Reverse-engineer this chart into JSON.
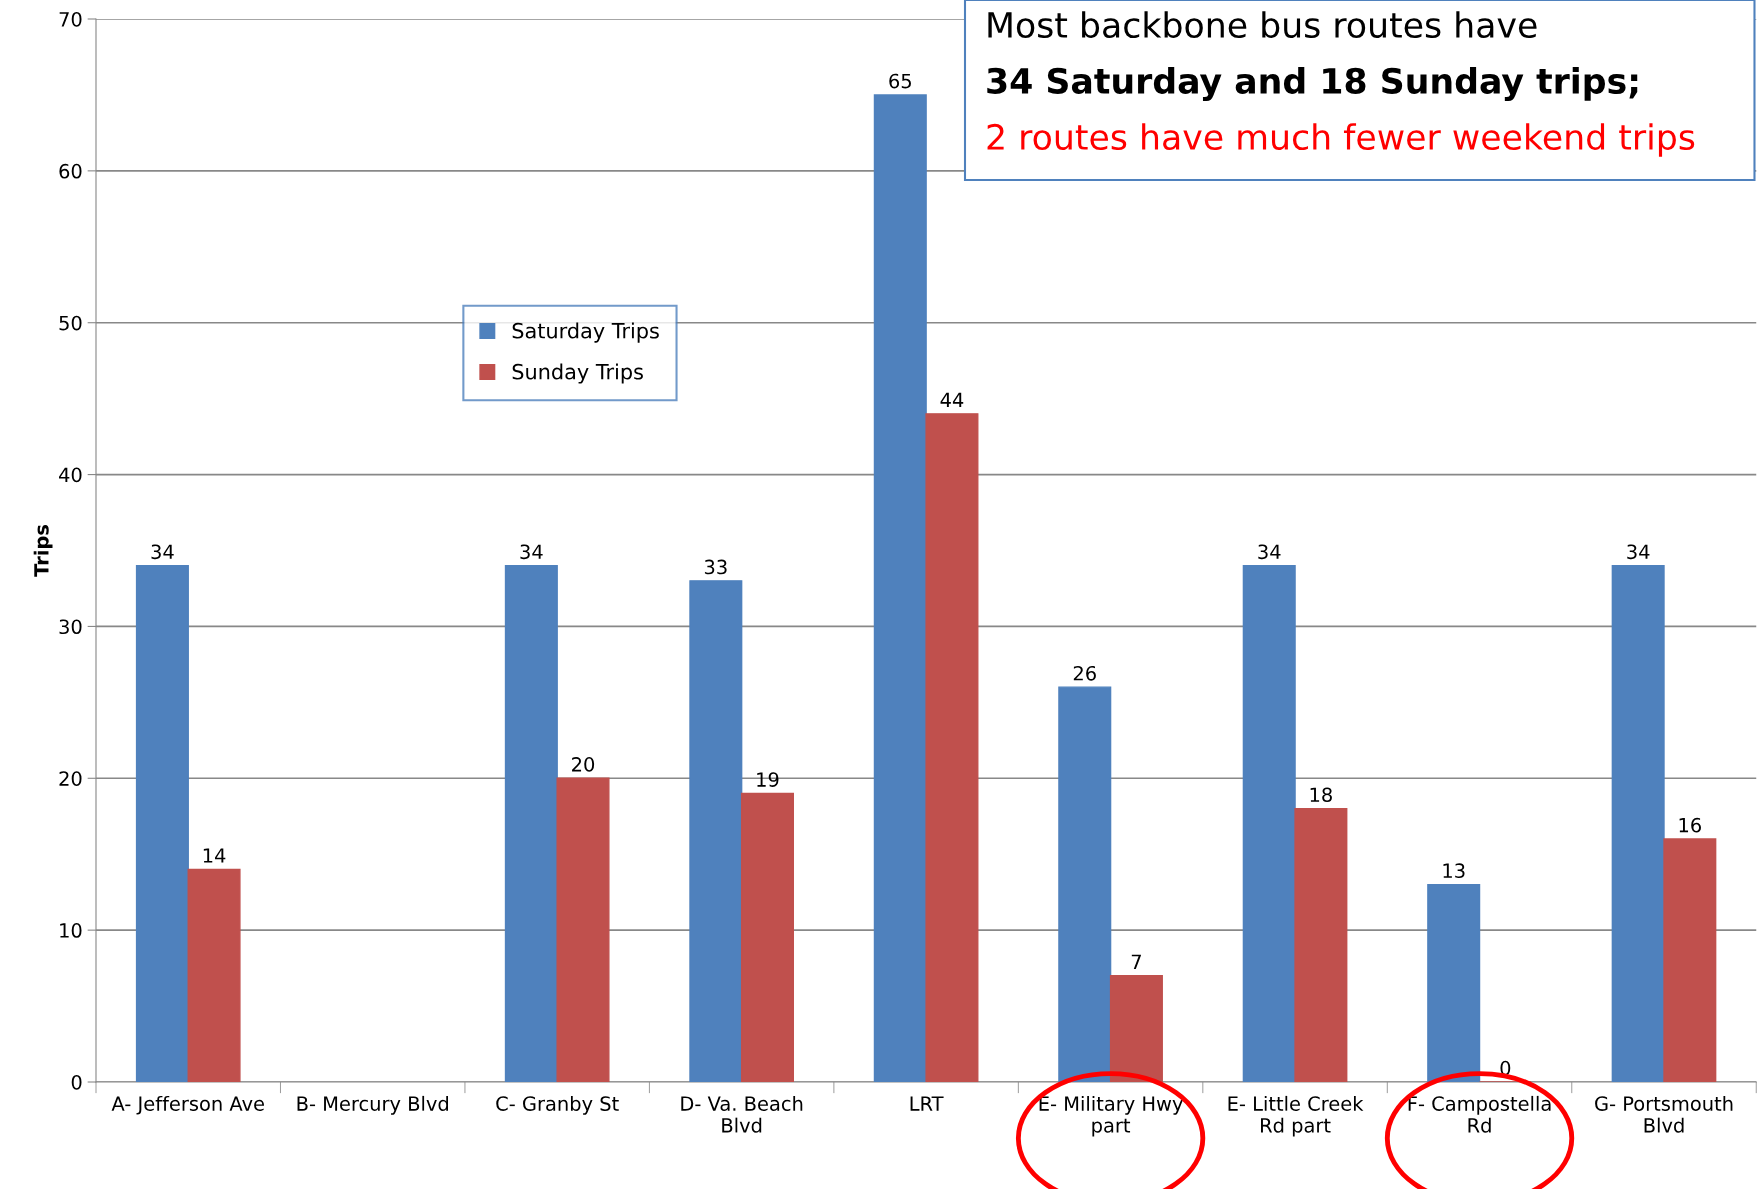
{
  "chart_data": {
    "type": "bar",
    "ylabel": "Trips",
    "categories": [
      "A- Jefferson Ave",
      "B- Mercury Blvd",
      "C- Granby St",
      "D- Va. Beach\nBlvd",
      "LRT",
      "E- Military Hwy\npart",
      "E- Little Creek\nRd part",
      "F- Campostella\nRd",
      "G- Portsmouth\nBlvd"
    ],
    "series": [
      {
        "name": "Saturday Trips",
        "color": "#4f81bd",
        "values": [
          34,
          null,
          34,
          33,
          65,
          26,
          34,
          13,
          34
        ]
      },
      {
        "name": "Sunday Trips",
        "color": "#c0504d",
        "values": [
          14,
          null,
          20,
          19,
          44,
          7,
          18,
          0,
          16
        ]
      }
    ],
    "ylim": [
      0,
      70
    ],
    "yticks": [
      0,
      10,
      20,
      30,
      40,
      50,
      60,
      70
    ],
    "grid": "y",
    "legend": "top left",
    "data_labels": true,
    "annotations": [
      "Most backbone bus routes have",
      "34 Saturday and 18 Sunday trips;",
      "2 routes have much fewer weekend trips"
    ]
  }
}
